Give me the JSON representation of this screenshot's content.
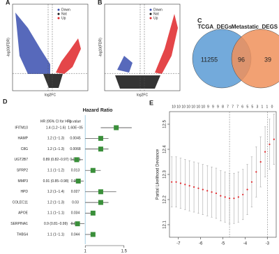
{
  "chart_data": [
    {
      "type": "volcano",
      "panel": "A",
      "xlabel": "log2FC",
      "ylabel": "-log10(FDR)",
      "series": [
        {
          "name": "Down",
          "color": "#3a4fb0"
        },
        {
          "name": "Not",
          "color": "#111111"
        },
        {
          "name": "Up",
          "color": "#e0262a"
        }
      ]
    },
    {
      "type": "volcano",
      "panel": "B",
      "xlabel": "log2FC",
      "ylabel": "-log10(FDR)",
      "series": [
        {
          "name": "Down",
          "color": "#3a4fb0"
        },
        {
          "name": "Not",
          "color": "#111111"
        },
        {
          "name": "Up",
          "color": "#e0262a"
        }
      ]
    },
    {
      "type": "venn",
      "panel": "C",
      "sets": [
        {
          "name": "TCGA_DEGs",
          "color": "#5b9bd5",
          "only": 11255
        },
        {
          "name": "Metastatic_DEGS",
          "color": "#f0905a",
          "only": 39
        }
      ],
      "intersection": 96
    },
    {
      "type": "forest",
      "panel": "D",
      "title": "Hazard Ratio",
      "hr_header": "HR (95% CI for HR)",
      "p_header": "p.value",
      "categories": [
        "IFITM10",
        "HAMP",
        "C8G",
        "UGT2B7",
        "SFRP2",
        "MMP3",
        "HPD",
        "COLEC11",
        "APOE",
        "SERPINA1",
        "THBS4"
      ],
      "values": [
        1.4,
        1.2,
        1.2,
        0.89,
        1.1,
        0.91,
        1.2,
        1.2,
        1.1,
        0.9,
        1.1
      ],
      "lower": [
        1.2,
        1,
        1,
        0.82,
        1,
        0.85,
        1,
        1,
        1,
        0.81,
        1
      ],
      "upper": [
        1.6,
        1.3,
        1.3,
        0.97,
        1.2,
        0.98,
        1.4,
        1.3,
        1.1,
        0.99,
        1.1
      ],
      "value_labels": [
        "1.4 (1.2−1.6)",
        "1.2 (1−1.3)",
        "1.2 (1−1.3)",
        "0.89 (0.82−0.97)",
        "1.1 (1−1.2)",
        "0.91 (0.85−0.98)",
        "1.2 (1−1.4)",
        "1.2 (1−1.3)",
        "1.1 (1−1.1)",
        "0.9 (0.81−0.99)",
        "1.1 (1−1.1)"
      ],
      "p_values": [
        "1.60E−05",
        "0.0045",
        "0.0068",
        "0.0081",
        "0.013",
        "0.015",
        "0.027",
        "0.03",
        "0.034",
        "0.037",
        "0.044"
      ],
      "color": "#3a8f3a",
      "xlim": [
        0.8,
        1.7
      ],
      "xticks": [
        1,
        1.5
      ]
    },
    {
      "type": "lasso",
      "panel": "E",
      "ylabel": "Partial Likelihood Deviance",
      "color": "#e0262a",
      "x": [
        -7.3,
        -7.1,
        -6.9,
        -6.7,
        -6.5,
        -6.3,
        -6.1,
        -5.9,
        -5.7,
        -5.5,
        -5.3,
        -5.1,
        -4.9,
        -4.7,
        -4.5,
        -4.3,
        -4.1,
        -3.9,
        -3.7,
        -3.5,
        -3.3,
        -3.1,
        -2.9,
        -2.7
      ],
      "values": [
        12.27,
        12.27,
        12.265,
        12.26,
        12.255,
        12.25,
        12.245,
        12.24,
        12.235,
        12.23,
        12.225,
        12.215,
        12.21,
        12.205,
        12.205,
        12.21,
        12.22,
        12.24,
        12.27,
        12.31,
        12.35,
        12.39,
        12.42,
        12.44
      ],
      "errors": [
        0.1,
        0.1,
        0.1,
        0.1,
        0.1,
        0.1,
        0.1,
        0.1,
        0.1,
        0.1,
        0.1,
        0.1,
        0.1,
        0.1,
        0.1,
        0.1,
        0.1,
        0.1,
        0.1,
        0.1,
        0.1,
        0.1,
        0.1,
        0.1
      ],
      "vlines": [
        -4.7,
        -3.0
      ],
      "top_labels": [
        10,
        10,
        10,
        10,
        10,
        10,
        10,
        9,
        9,
        9,
        8,
        7,
        7,
        7,
        6,
        5,
        5,
        3,
        1,
        1,
        0
      ],
      "xlim": [
        -7.4,
        -2.6
      ],
      "xticks": [
        -7,
        -6,
        -5,
        -4,
        -3
      ],
      "ylim": [
        12.05,
        12.55
      ],
      "yticks": [
        12.1,
        12.2,
        12.3,
        12.4,
        12.5
      ]
    }
  ]
}
